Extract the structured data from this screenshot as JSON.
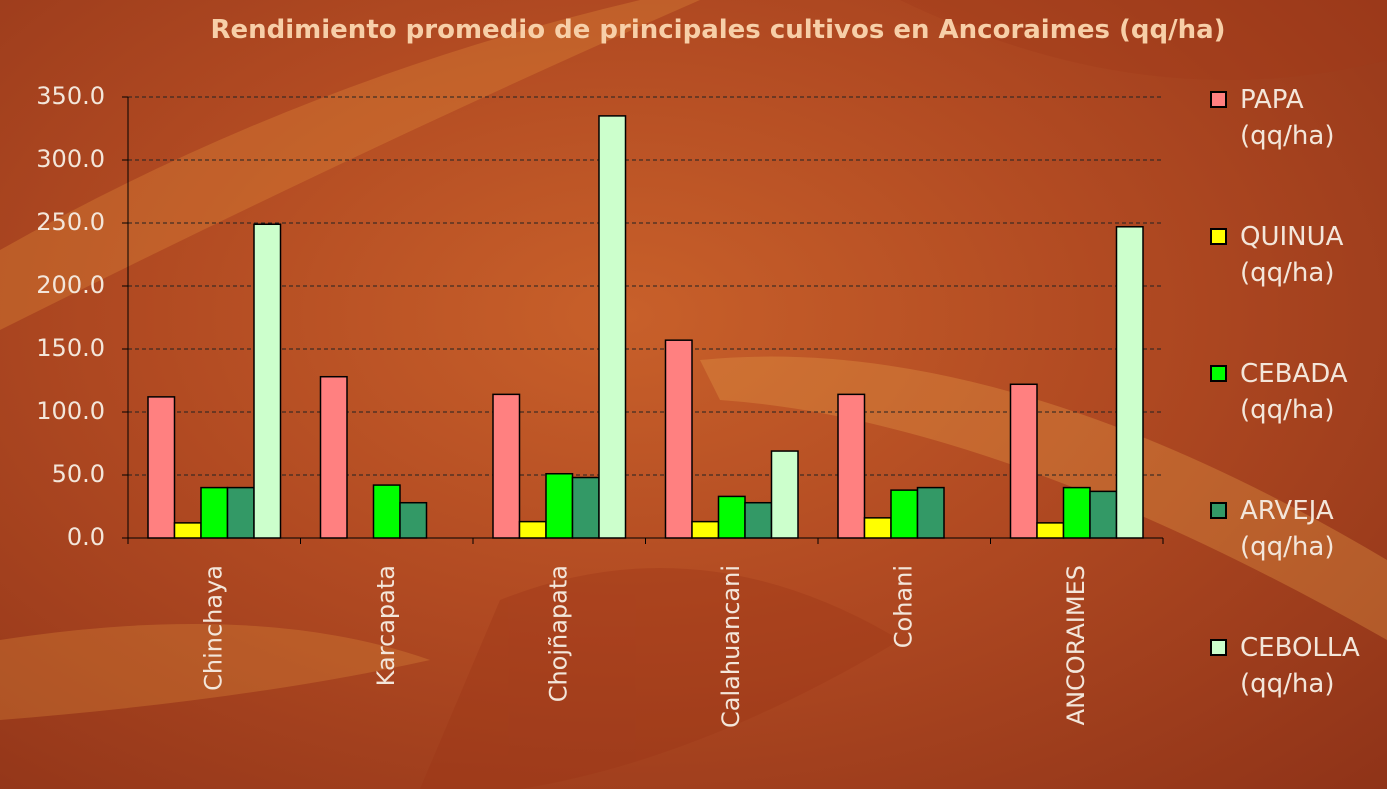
{
  "chart_data": {
    "type": "bar",
    "title": "Rendimiento promedio de principales cultivos en Ancoraimes (qq/ha)",
    "categories": [
      "Chinchaya",
      "Karcapata",
      "Chojñapata",
      "Calahuancani",
      "Cohani",
      "ANCORAIMES"
    ],
    "series": [
      {
        "name": "PAPA (qq/ha)",
        "color": "#ff8080",
        "values": [
          112,
          128,
          114,
          157,
          114,
          122
        ]
      },
      {
        "name": "QUINUA (qq/ha)",
        "color": "#ffff00",
        "values": [
          12,
          null,
          13,
          13,
          16,
          12
        ]
      },
      {
        "name": "CEBADA (qq/ha)",
        "color": "#00ff00",
        "values": [
          40,
          42,
          51,
          33,
          38,
          40
        ]
      },
      {
        "name": "ARVEJA (qq/ha)",
        "color": "#339966",
        "values": [
          40,
          28,
          48,
          28,
          40,
          37
        ]
      },
      {
        "name": "CEBOLLA (qq/ha)",
        "color": "#ccffcc",
        "values": [
          249,
          null,
          335,
          69,
          null,
          247
        ]
      }
    ],
    "ylim": [
      0,
      350
    ],
    "yticks": [
      {
        "value": 0,
        "label": "0.0"
      },
      {
        "value": 50,
        "label": "50.0"
      },
      {
        "value": 100,
        "label": "100.0"
      },
      {
        "value": 150,
        "label": "150.0"
      },
      {
        "value": 200,
        "label": "200.0"
      },
      {
        "value": 250,
        "label": "250.0"
      },
      {
        "value": 300,
        "label": "300.0"
      },
      {
        "value": 350,
        "label": "350.0"
      }
    ],
    "grid": true,
    "legend": "right"
  }
}
